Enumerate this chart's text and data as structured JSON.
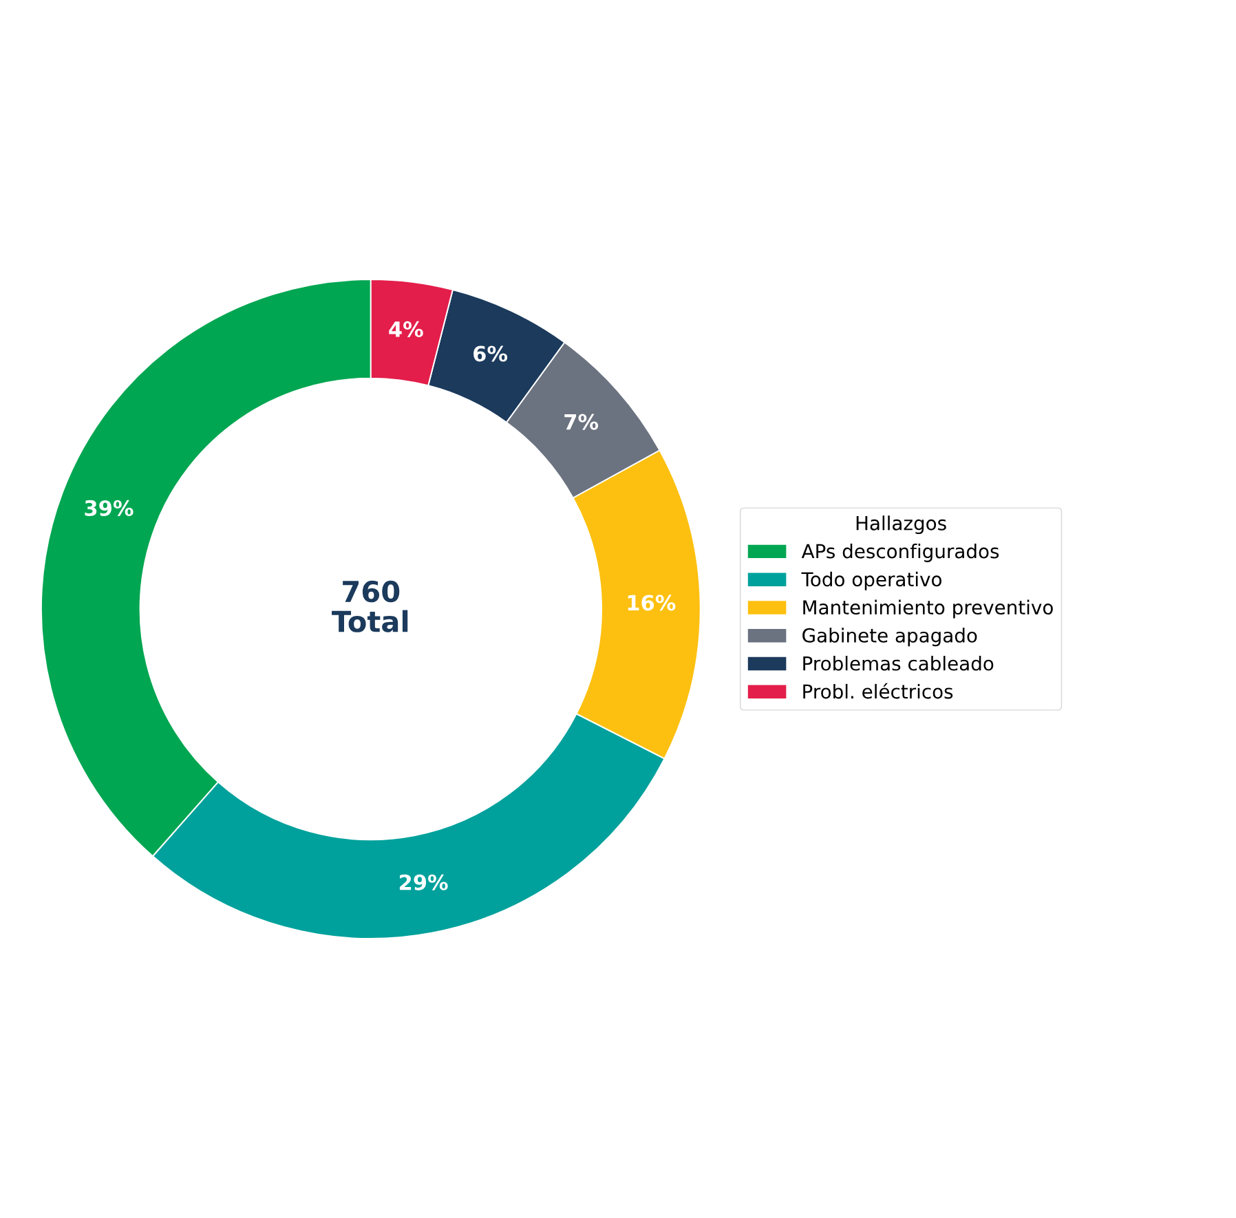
{
  "chart_data": {
    "type": "donut",
    "categories": [
      "APs desconfigurados",
      "Todo operativo",
      "Mantenimiento preventivo",
      "Gabinete apagado",
      "Problemas cableado",
      "Probl. eléctricos"
    ],
    "values": [
      38.5,
      29,
      15.5,
      7,
      6,
      4
    ],
    "value_labels": [
      "39%",
      "29%",
      "16%",
      "7%",
      "6%",
      "4%"
    ],
    "colors": [
      "#00a651",
      "#00a19c",
      "#fdc010",
      "#6b7280",
      "#1b3a5c",
      "#e31e4a"
    ],
    "legend_title": "Hallazgos",
    "legend": "right",
    "annotations": [
      "760\nTotal"
    ]
  }
}
